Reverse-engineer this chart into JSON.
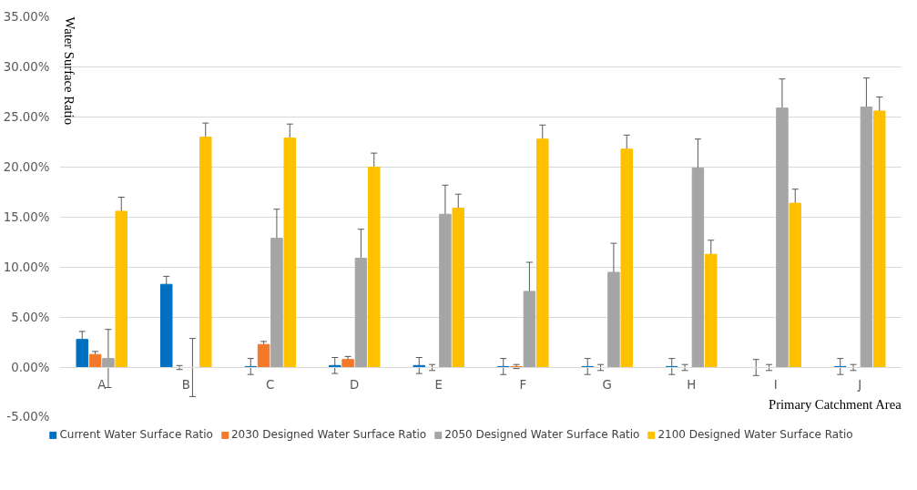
{
  "chart_data": {
    "type": "bar",
    "xlabel": "Primary Catchment Area",
    "ylabel": "Water Surface Ratio",
    "categories": [
      "A",
      "B",
      "C",
      "D",
      "E",
      "F",
      "G",
      "H",
      "I",
      "J"
    ],
    "ylim": [
      -5,
      35
    ],
    "yticks": [
      {
        "value": -5,
        "label": "-5.00%"
      },
      {
        "value": 0,
        "label": "0.00%"
      },
      {
        "value": 5,
        "label": "5.00%"
      },
      {
        "value": 10,
        "label": "10.00%"
      },
      {
        "value": 15,
        "label": "15.00%"
      },
      {
        "value": 20,
        "label": "20.00%"
      },
      {
        "value": 25,
        "label": "25.00%"
      },
      {
        "value": 30,
        "label": "30.00%"
      },
      {
        "value": 35,
        "label": "35.00%"
      }
    ],
    "grid": "y",
    "legend": "bottom",
    "series": [
      {
        "name": "Current Water Surface Ratio",
        "color": "#0070c0",
        "values": [
          2.8,
          8.3,
          0.1,
          0.2,
          0.2,
          0.1,
          0.1,
          0.1,
          0,
          0.1
        ],
        "errors": [
          0.8,
          0.8,
          0.8,
          0.8,
          0.8,
          0.8,
          0.8,
          0.8,
          0.8,
          0.8
        ]
      },
      {
        "name": "2030 Designed Water Surface Ratio",
        "color": "#f4782a",
        "values": [
          1.3,
          0,
          2.3,
          0.8,
          0,
          0.1,
          0,
          0,
          0,
          0
        ],
        "errors": [
          0.3,
          0.2,
          0.3,
          0.3,
          0.3,
          0.2,
          0.3,
          0.3,
          0.3,
          0.3
        ]
      },
      {
        "name": "2050 Designed Water Surface Ratio",
        "color": "#a5a5a5",
        "values": [
          0.9,
          0,
          12.9,
          10.9,
          15.3,
          7.6,
          9.5,
          19.9,
          25.9,
          26.0
        ],
        "errors": [
          2.9,
          2.9,
          2.9,
          2.9,
          2.9,
          2.9,
          2.9,
          2.9,
          2.9,
          2.9
        ]
      },
      {
        "name": "2100 Designed Water Surface Ratio",
        "color": "#ffc000",
        "values": [
          15.6,
          23.0,
          22.9,
          20.0,
          15.9,
          22.8,
          21.8,
          11.3,
          16.4,
          25.6
        ],
        "errors": [
          1.4,
          1.4,
          1.4,
          1.4,
          1.4,
          1.4,
          1.4,
          1.4,
          1.4,
          1.4
        ]
      }
    ]
  }
}
